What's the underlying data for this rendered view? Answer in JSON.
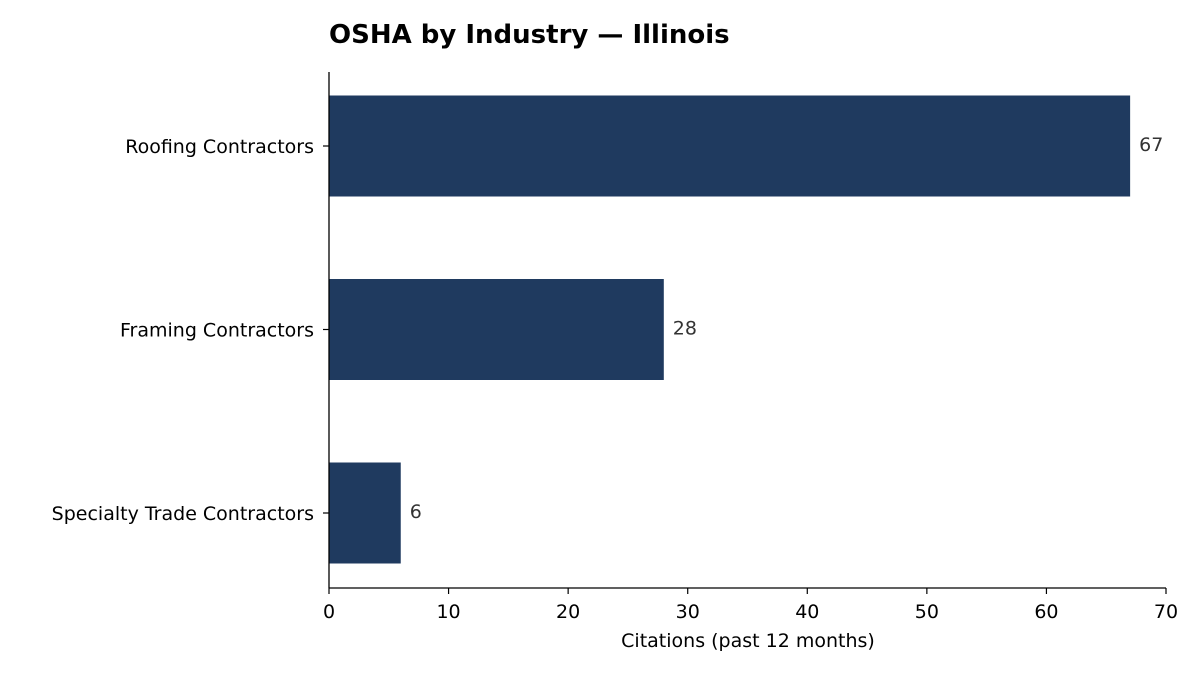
{
  "chart_data": {
    "type": "bar",
    "orientation": "horizontal",
    "title": "OSHA by Industry — Illinois",
    "categories": [
      "Roofing Contractors",
      "Framing Contractors",
      "Specialty Trade Contractors"
    ],
    "values": [
      67,
      28,
      6
    ],
    "value_labels": [
      "67",
      "28",
      "6"
    ],
    "xlabel": "Citations (past 12 months)",
    "ylabel": "",
    "xlim": [
      0,
      70
    ],
    "xticks": [
      0,
      10,
      20,
      30,
      40,
      50,
      60,
      70
    ],
    "grid": false,
    "bar_color": "#1f3a5f"
  }
}
